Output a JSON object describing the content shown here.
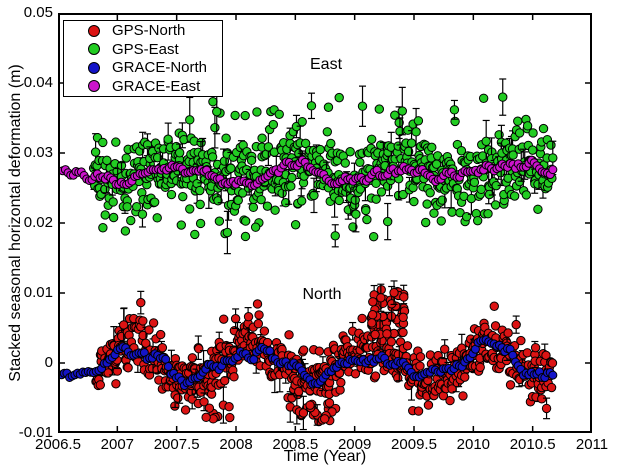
{
  "window": {
    "background": "#ffffff",
    "axis_color": "#000000"
  },
  "chart_data": {
    "type": "scatter",
    "title": "",
    "xlabel": "Time (Year)",
    "ylabel": "Stacked seasonal horizontal deformation (m)",
    "xlim": [
      2006.5,
      2011
    ],
    "ylim": [
      -0.01,
      0.05
    ],
    "x_tick_values": [
      2006.5,
      2007,
      2007.5,
      2008,
      2008.5,
      2009,
      2009.5,
      2010,
      2010.5,
      2011
    ],
    "x_tick_labels": [
      "2006.5",
      "2007",
      "2007.5",
      "2008",
      "2008.5",
      "2009",
      "2009.5",
      "2010",
      "2010.5",
      "2011"
    ],
    "y_tick_values": [
      0.05,
      0.04,
      0.03,
      0.02,
      0.01,
      0,
      -0.01
    ],
    "y_tick_labels": [
      "0.05",
      "0.04",
      "0.03",
      "0.02",
      "0.01",
      "0",
      "-0.01"
    ],
    "grid": false,
    "legend": {
      "position": "top-left",
      "entries": [
        {
          "label": "GPS-North",
          "color": "#dc1414"
        },
        {
          "label": "GPS-East",
          "color": "#22cc22"
        },
        {
          "label": "GRACE-North",
          "color": "#1414c8"
        },
        {
          "label": "GRACE-East",
          "color": "#cc14cc"
        }
      ]
    },
    "annotations": [
      {
        "text": "East",
        "x": 2008.76,
        "y": 0.0426
      },
      {
        "text": "North",
        "x": 2008.72,
        "y": 0.0097
      }
    ],
    "note": "Dense noisy scatter; exact point values are not individually resolvable, so each series is described by its seasonal model (mean, annual amplitude, peak phase, noise sd) read from the axes; points are synthesized deterministically from these parameters.",
    "draw_order": [
      "GPS-East",
      "GPS-North",
      "GRACE-East",
      "GRACE-North"
    ],
    "series": [
      {
        "name": "GPS-North",
        "kind": "gps-scatter",
        "color": "#dc1414",
        "marker_edge_color": "#000000",
        "marker_radius_px": 4.2,
        "seed": 11,
        "model": {
          "t_start": 2006.82,
          "t_end": 2010.67,
          "n": 730,
          "t_jitter_sd": 0.004,
          "mean": 0.0,
          "seasonal_amplitude": 0.0026,
          "seasonal_peak_year_fraction": 0.13,
          "noise_sd": 0.002,
          "clip": [
            -0.0095,
            0.0105
          ]
        },
        "errorbars": {
          "fraction": 0.09,
          "half_min": 0.001,
          "half_max": 0.0026
        },
        "outlier_clusters": [
          {
            "t_range": [
              2009.13,
              2009.42
            ],
            "v_range": [
              0.004,
              0.0105
            ],
            "n": 45
          },
          {
            "t_range": [
              2008.5,
              2008.85
            ],
            "v_range": [
              -0.009,
              -0.0055
            ],
            "n": 20
          },
          {
            "t_range": [
              2007.7,
              2007.95
            ],
            "v_range": [
              -0.008,
              -0.0055
            ],
            "n": 10
          }
        ]
      },
      {
        "name": "GPS-East",
        "kind": "gps-scatter",
        "color": "#22cc22",
        "marker_edge_color": "#000000",
        "marker_radius_px": 4.2,
        "seed": 22,
        "model": {
          "t_start": 2006.8,
          "t_end": 2010.67,
          "n": 730,
          "t_jitter_sd": 0.004,
          "mean": 0.0272,
          "seasonal_amplitude": 0.0013,
          "seasonal_peak_year_fraction": 0.45,
          "noise_sd": 0.0029,
          "clip": [
            0.0178,
            0.0383
          ]
        },
        "errorbars": {
          "fraction": 0.11,
          "half_min": 0.0013,
          "half_max": 0.0034
        },
        "outlier_clusters": [
          {
            "t_range": [
              2007.5,
              2010.65
            ],
            "v_range": [
              0.035,
              0.038
            ],
            "n": 12
          },
          {
            "t_range": [
              2007.2,
              2010.2
            ],
            "v_range": [
              0.018,
              0.0205
            ],
            "n": 10
          }
        ]
      },
      {
        "name": "GRACE-North",
        "kind": "grace-band",
        "color": "#1414c8",
        "marker_edge_color": "#000000",
        "marker_radius_px": 4.0,
        "seed": 33,
        "model": {
          "t_start": 2006.53,
          "t_end": 2010.67,
          "n": 185,
          "t_jitter_sd": 0,
          "mean": -0.0002,
          "seasonal_amplitude": 0.0018,
          "seasonal_peak_year_fraction": 0.13,
          "noise_sd": 0.00035,
          "clip": [
            -0.004,
            0.004
          ]
        },
        "errorbars": {
          "fraction": 0,
          "half_min": 0,
          "half_max": 0
        },
        "outlier_clusters": []
      },
      {
        "name": "GRACE-East",
        "kind": "grace-band",
        "color": "#cc14cc",
        "marker_edge_color": "#000000",
        "marker_radius_px": 4.0,
        "seed": 44,
        "model": {
          "t_start": 2006.54,
          "t_end": 2010.67,
          "n": 185,
          "t_jitter_sd": 0,
          "mean": 0.0268,
          "seasonal_amplitude": 0.00065,
          "seasonal_peak_year_fraction": 0.45,
          "noise_sd": 0.00035,
          "clip": [
            0.024,
            0.03
          ]
        },
        "errorbars": {
          "fraction": 0,
          "half_min": 0,
          "half_max": 0
        },
        "outlier_clusters": []
      }
    ]
  }
}
